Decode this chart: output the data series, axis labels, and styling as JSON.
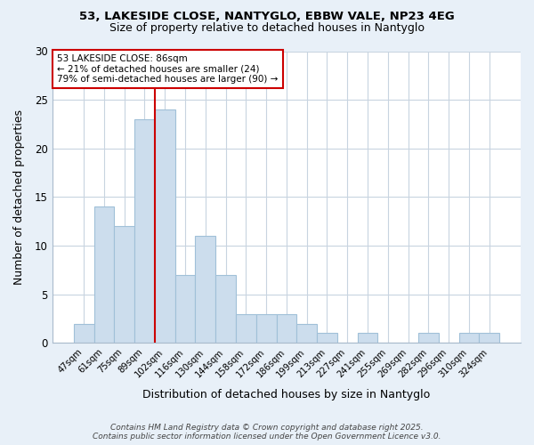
{
  "title_line1": "53, LAKESIDE CLOSE, NANTYGLO, EBBW VALE, NP23 4EG",
  "title_line2": "Size of property relative to detached houses in Nantyglo",
  "xlabel": "Distribution of detached houses by size in Nantyglo",
  "ylabel": "Number of detached properties",
  "categories": [
    "47sqm",
    "61sqm",
    "75sqm",
    "89sqm",
    "102sqm",
    "116sqm",
    "130sqm",
    "144sqm",
    "158sqm",
    "172sqm",
    "186sqm",
    "199sqm",
    "213sqm",
    "227sqm",
    "241sqm",
    "255sqm",
    "269sqm",
    "282sqm",
    "296sqm",
    "310sqm",
    "324sqm"
  ],
  "values": [
    2,
    14,
    12,
    23,
    24,
    7,
    11,
    7,
    3,
    3,
    3,
    2,
    1,
    0,
    1,
    0,
    0,
    1,
    0,
    1,
    1
  ],
  "bar_color": "#ccdded",
  "bar_edge_color": "#a0c0d8",
  "vline_x": 3.5,
  "vline_color": "#cc0000",
  "annotation_text": "53 LAKESIDE CLOSE: 86sqm\n← 21% of detached houses are smaller (24)\n79% of semi-detached houses are larger (90) →",
  "annotation_box_color": "#ffffff",
  "annotation_box_edge": "#cc0000",
  "ylim": [
    0,
    30
  ],
  "yticks": [
    0,
    5,
    10,
    15,
    20,
    25,
    30
  ],
  "footnote": "Contains HM Land Registry data © Crown copyright and database right 2025.\nContains public sector information licensed under the Open Government Licence v3.0.",
  "bg_color": "#e8f0f8",
  "plot_bg_color": "#ffffff",
  "grid_color": "#c8d4e0"
}
